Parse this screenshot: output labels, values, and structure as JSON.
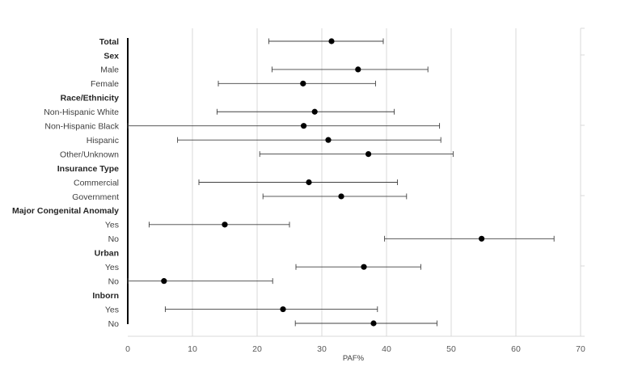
{
  "chart_data": {
    "type": "forest",
    "xlabel": "PAF%",
    "xlim": [
      0,
      70
    ],
    "xticks": [
      0,
      10,
      20,
      30,
      40,
      50,
      60,
      70
    ],
    "grid": true,
    "rows": [
      {
        "label": "Total",
        "header": true,
        "estimate": 31.5,
        "lower": 21.8,
        "upper": 39.5
      },
      {
        "label": "Sex",
        "header": true
      },
      {
        "label": "Male",
        "header": false,
        "estimate": 35.6,
        "lower": 22.3,
        "upper": 46.4
      },
      {
        "label": "Female",
        "header": false,
        "estimate": 27.1,
        "lower": 14.0,
        "upper": 38.3
      },
      {
        "label": "Race/Ethnicity",
        "header": true
      },
      {
        "label": "Non-Hispanic White",
        "header": false,
        "estimate": 28.9,
        "lower": 13.8,
        "upper": 41.2
      },
      {
        "label": "Non-Hispanic Black",
        "header": false,
        "estimate": 27.2,
        "lower": 0.0,
        "upper": 48.2
      },
      {
        "label": "Hispanic",
        "header": false,
        "estimate": 31.0,
        "lower": 7.7,
        "upper": 48.4
      },
      {
        "label": "Other/Unknown",
        "header": false,
        "estimate": 37.2,
        "lower": 20.4,
        "upper": 50.3
      },
      {
        "label": "Insurance Type",
        "header": true
      },
      {
        "label": "Commercial",
        "header": false,
        "estimate": 28.0,
        "lower": 11.0,
        "upper": 41.7
      },
      {
        "label": "Government",
        "header": false,
        "estimate": 33.0,
        "lower": 20.9,
        "upper": 43.1
      },
      {
        "label": "Major Congenital Anomaly",
        "header": true
      },
      {
        "label": "Yes",
        "header": false,
        "estimate": 15.0,
        "lower": 3.3,
        "upper": 25.0
      },
      {
        "label": "No",
        "header": false,
        "estimate": 54.7,
        "lower": 39.7,
        "upper": 65.9
      },
      {
        "label": "Urban",
        "header": true
      },
      {
        "label": "Yes",
        "header": false,
        "estimate": 36.5,
        "lower": 26.0,
        "upper": 45.3
      },
      {
        "label": "No",
        "header": false,
        "estimate": 5.6,
        "lower": 0.0,
        "upper": 22.4
      },
      {
        "label": "Inborn",
        "header": true
      },
      {
        "label": "Yes",
        "header": false,
        "estimate": 24.0,
        "lower": 5.8,
        "upper": 38.6
      },
      {
        "label": "No",
        "header": false,
        "estimate": 38.0,
        "lower": 25.9,
        "upper": 47.8
      }
    ]
  }
}
